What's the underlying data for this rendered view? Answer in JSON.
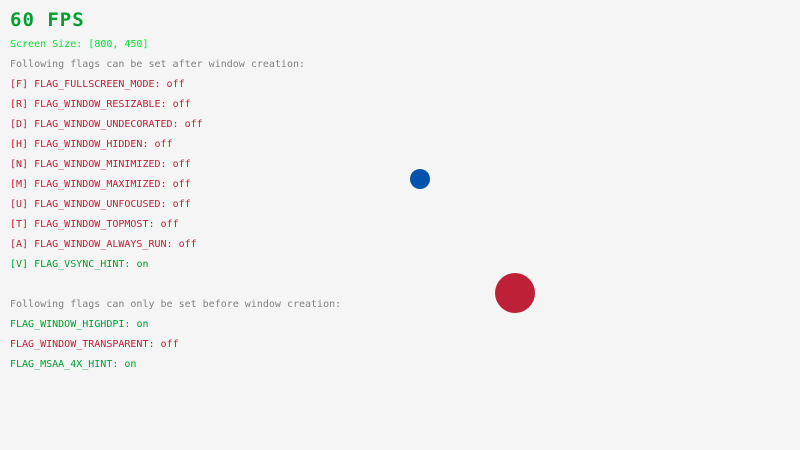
{
  "fps": "60 FPS",
  "screen_size": "Screen Size: [800, 450]",
  "after_header": "Following flags can be set after window creation:",
  "after_flags": [
    {
      "label": "[F] FLAG_FULLSCREEN_MODE:",
      "value": "off"
    },
    {
      "label": "[R] FLAG_WINDOW_RESIZABLE:",
      "value": "off"
    },
    {
      "label": "[D] FLAG_WINDOW_UNDECORATED:",
      "value": "off"
    },
    {
      "label": "[H] FLAG_WINDOW_HIDDEN:",
      "value": "off"
    },
    {
      "label": "[N] FLAG_WINDOW_MINIMIZED:",
      "value": "off"
    },
    {
      "label": "[M] FLAG_WINDOW_MAXIMIZED:",
      "value": "off"
    },
    {
      "label": "[U] FLAG_WINDOW_UNFOCUSED:",
      "value": "off"
    },
    {
      "label": "[T] FLAG_WINDOW_TOPMOST:",
      "value": "off"
    },
    {
      "label": "[A] FLAG_WINDOW_ALWAYS_RUN:",
      "value": "off"
    },
    {
      "label": "[V] FLAG_VSYNC_HINT:",
      "value": "on"
    }
  ],
  "before_header": "Following flags can only be set before window creation:",
  "before_flags": [
    {
      "label": "FLAG_WINDOW_HIGHDPI:",
      "value": "on"
    },
    {
      "label": "FLAG_WINDOW_TRANSPARENT:",
      "value": "off"
    },
    {
      "label": "FLAG_MSAA_4X_HINT:",
      "value": "on"
    }
  ],
  "colors": {
    "on": "#009e2f",
    "off": "#be2137",
    "fps": "#009e2f",
    "screen_size": "#00e430",
    "ball_blue": "#0052ac",
    "ball_red": "#be2137"
  }
}
